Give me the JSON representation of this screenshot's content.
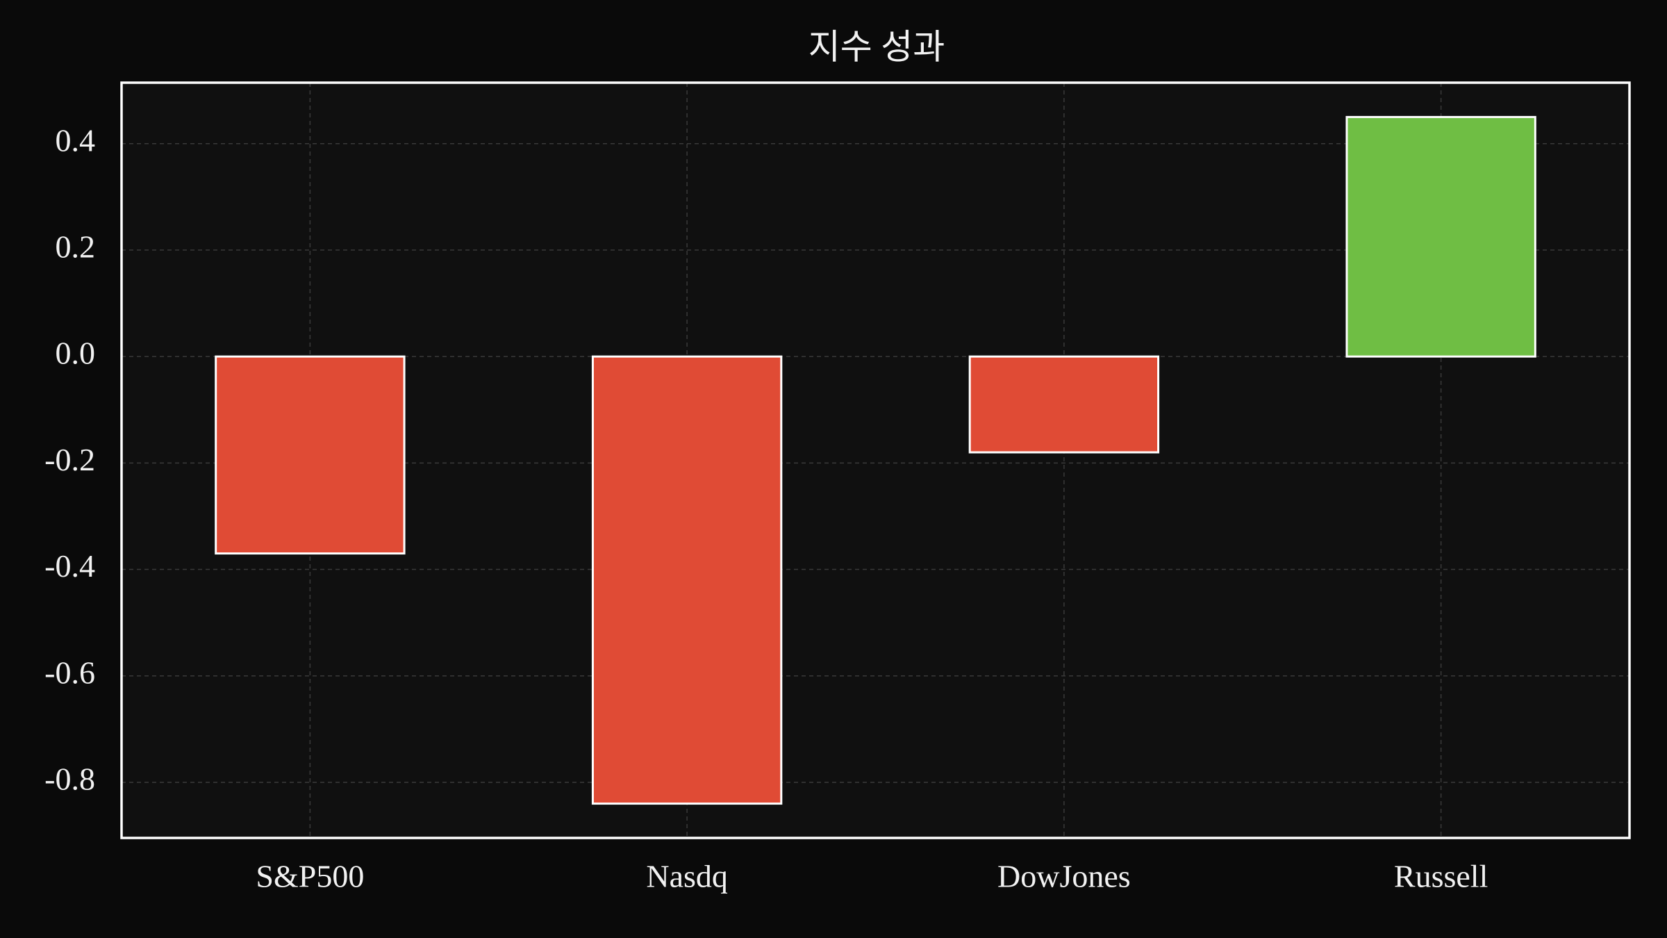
{
  "chart_data": {
    "type": "bar",
    "title": "지수 성과",
    "categories": [
      "S&P500",
      "Nasdq",
      "DowJones",
      "Russell"
    ],
    "values": [
      -0.37,
      -0.84,
      -0.18,
      0.45
    ],
    "colors": [
      "#e04b35",
      "#e04b35",
      "#e04b35",
      "#6fbe44"
    ],
    "ylim": [
      -0.9045,
      0.5145
    ],
    "yticks": [
      -0.8,
      -0.6,
      -0.4,
      -0.2,
      {
        "value": 0,
        "label": "0.0"
      },
      0.2,
      0.4
    ],
    "grid": true
  }
}
